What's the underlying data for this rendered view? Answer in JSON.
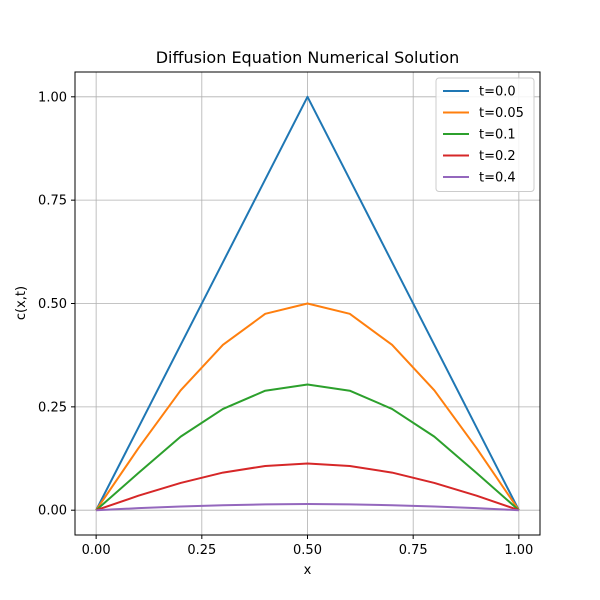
{
  "chart_data": {
    "type": "line",
    "title": "Diffusion Equation Numerical Solution",
    "xlabel": "x",
    "ylabel": "c(x,t)",
    "xlim": [
      -0.05,
      1.05
    ],
    "ylim": [
      -0.06,
      1.06
    ],
    "xticks": [
      0.0,
      0.25,
      0.5,
      0.75,
      1.0
    ],
    "xtick_labels": [
      "0.00",
      "0.25",
      "0.50",
      "0.75",
      "1.00"
    ],
    "yticks": [
      0.0,
      0.25,
      0.5,
      0.75,
      1.0
    ],
    "ytick_labels": [
      "0.00",
      "0.25",
      "0.50",
      "0.75",
      "1.00"
    ],
    "grid": true,
    "legend_position": "top-right",
    "x": [
      0.0,
      0.1,
      0.2,
      0.3,
      0.4,
      0.5,
      0.6,
      0.7,
      0.8,
      0.9,
      1.0
    ],
    "series": [
      {
        "name": "t=0.0",
        "color": "#1f77b4",
        "values": [
          0.0,
          0.2,
          0.4,
          0.6,
          0.8,
          1.0,
          0.8,
          0.6,
          0.4,
          0.2,
          0.0
        ]
      },
      {
        "name": "t=0.05",
        "color": "#ff7f0e",
        "values": [
          0.0,
          0.15,
          0.29,
          0.4,
          0.475,
          0.5,
          0.475,
          0.4,
          0.29,
          0.15,
          0.0
        ]
      },
      {
        "name": "t=0.1",
        "color": "#2ca02c",
        "values": [
          0.0,
          0.09,
          0.178,
          0.245,
          0.289,
          0.304,
          0.289,
          0.245,
          0.178,
          0.09,
          0.0
        ]
      },
      {
        "name": "t=0.2",
        "color": "#d62728",
        "values": [
          0.0,
          0.035,
          0.066,
          0.091,
          0.107,
          0.113,
          0.107,
          0.091,
          0.066,
          0.035,
          0.0
        ]
      },
      {
        "name": "t=0.4",
        "color": "#9467bd",
        "values": [
          0.0,
          0.005,
          0.009,
          0.012,
          0.014,
          0.015,
          0.014,
          0.012,
          0.009,
          0.005,
          0.0
        ]
      }
    ]
  }
}
